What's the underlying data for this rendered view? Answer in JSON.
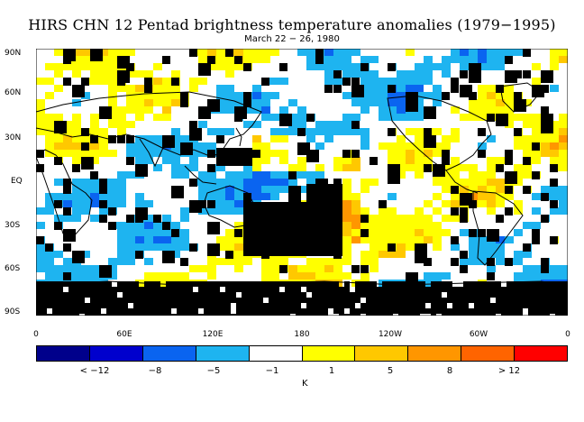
{
  "title": "HIRS CHN 12 Pentad brightness temperature anomalies (1979−1995)",
  "subtitle": "March 22 − 26, 1980",
  "axes": {
    "y_labels": [
      "90N",
      "60N",
      "30N",
      "EQ",
      "30S",
      "60S",
      "90S"
    ],
    "x_labels": [
      "0",
      "60E",
      "120E",
      "180",
      "120W",
      "60W",
      "0"
    ]
  },
  "legend": {
    "colors": [
      "#00008b",
      "#0000cd",
      "#0a64f0",
      "#1eb4f0",
      "#ffffff",
      "#ffff00",
      "#ffc800",
      "#ff9600",
      "#ff6400",
      "#ff0000"
    ],
    "labels": [
      "< −12",
      "−8",
      "−5",
      "−1",
      "1",
      "5",
      "8",
      "> 12"
    ],
    "unit": "K"
  },
  "map_colors": {
    "missing": "#000000",
    "land_outline": "#000000"
  }
}
